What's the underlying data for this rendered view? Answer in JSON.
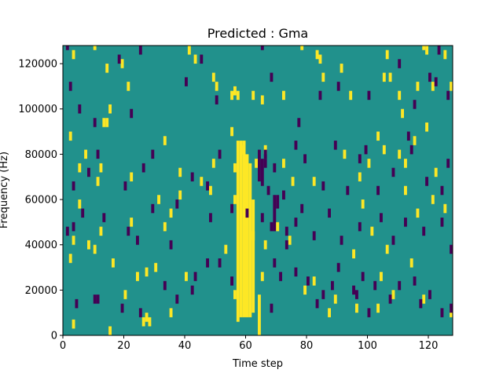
{
  "chart_data": {
    "type": "heatmap",
    "title": "Predicted : Gma",
    "xlabel": "Time step",
    "ylabel": "Frequency (Hz)",
    "xlim": [
      0,
      128
    ],
    "ylim": [
      0,
      128000
    ],
    "xticks": [
      0,
      20,
      40,
      60,
      80,
      100,
      120
    ],
    "yticks": [
      0,
      20000,
      40000,
      60000,
      80000,
      100000,
      120000
    ],
    "xtick_labels": [
      "0",
      "20",
      "40",
      "60",
      "80",
      "100",
      "120"
    ],
    "ytick_labels": [
      "0",
      "20000",
      "40000",
      "60000",
      "80000",
      "100000",
      "120000"
    ],
    "grid": false,
    "colormap": "viridis",
    "background_color": "#21918c",
    "high_color": "#fde725",
    "low_color": "#440154",
    "background_value": 0,
    "high_value": 1,
    "low_value": -1,
    "bin_width_x": 1,
    "bin_height_y": 1000,
    "dense_bands": [
      {
        "value": 1,
        "x": [
          57,
          58
        ],
        "y": [
          6000,
          86000
        ]
      },
      {
        "value": 1,
        "x": [
          58,
          59
        ],
        "y": [
          8000,
          86000
        ]
      },
      {
        "value": 1,
        "x": [
          59,
          60
        ],
        "y": [
          8000,
          86000
        ]
      },
      {
        "value": 1,
        "x": [
          60,
          61
        ],
        "y": [
          8000,
          80000
        ]
      },
      {
        "value": 1,
        "x": [
          61,
          62
        ],
        "y": [
          8000,
          76000
        ]
      },
      {
        "value": 1,
        "x": [
          62,
          63
        ],
        "y": [
          10000,
          60000
        ]
      },
      {
        "value": 1,
        "x": [
          64,
          65
        ],
        "y": [
          0,
          18000
        ]
      },
      {
        "value": -1,
        "x": [
          64,
          65
        ],
        "y": [
          68000,
          78000
        ]
      },
      {
        "value": -1,
        "x": [
          65,
          66
        ],
        "y": [
          66000,
          78000
        ]
      },
      {
        "value": -1,
        "x": [
          66,
          67
        ],
        "y": [
          74000,
          78000
        ]
      },
      {
        "value": -1,
        "x": [
          69,
          70
        ],
        "y": [
          46000,
          62000
        ]
      },
      {
        "value": -1,
        "x": [
          70,
          71
        ],
        "y": [
          56000,
          62000
        ]
      }
    ],
    "cells": [
      [
        3,
        3000,
        1
      ],
      [
        15,
        0,
        1
      ],
      [
        26,
        4000,
        1
      ],
      [
        27,
        6000,
        1
      ],
      [
        28,
        4000,
        1
      ],
      [
        35,
        8000,
        1
      ],
      [
        56,
        16000,
        1
      ],
      [
        65,
        24000,
        1
      ],
      [
        66,
        38000,
        1
      ],
      [
        87,
        8000,
        1
      ],
      [
        96,
        10000,
        1
      ],
      [
        103,
        10000,
        1
      ],
      [
        104,
        24000,
        1
      ],
      [
        118,
        14000,
        1
      ],
      [
        127,
        8000,
        1
      ],
      [
        2,
        32000,
        1
      ],
      [
        3,
        40000,
        1
      ],
      [
        5,
        56000,
        1
      ],
      [
        8,
        38000,
        1
      ],
      [
        10,
        36000,
        1
      ],
      [
        12,
        44000,
        1
      ],
      [
        16,
        30000,
        1
      ],
      [
        20,
        16000,
        1
      ],
      [
        22,
        48000,
        1
      ],
      [
        24,
        24000,
        1
      ],
      [
        27,
        26000,
        1
      ],
      [
        30,
        28000,
        1
      ],
      [
        31,
        58000,
        1
      ],
      [
        33,
        46000,
        1
      ],
      [
        35,
        52000,
        1
      ],
      [
        38,
        60000,
        1
      ],
      [
        40,
        24000,
        1
      ],
      [
        45,
        66000,
        1
      ],
      [
        48,
        62000,
        1
      ],
      [
        53,
        36000,
        1
      ],
      [
        56,
        58000,
        1
      ],
      [
        62,
        42000,
        1
      ],
      [
        70,
        46000,
        1
      ],
      [
        74,
        40000,
        1
      ],
      [
        79,
        18000,
        1
      ],
      [
        82,
        22000,
        1
      ],
      [
        89,
        14000,
        1
      ],
      [
        95,
        34000,
        1
      ],
      [
        98,
        56000,
        1
      ],
      [
        101,
        44000,
        1
      ],
      [
        106,
        36000,
        1
      ],
      [
        108,
        16000,
        1
      ],
      [
        112,
        62000,
        1
      ],
      [
        114,
        30000,
        1
      ],
      [
        116,
        52000,
        1
      ],
      [
        121,
        58000,
        1
      ],
      [
        125,
        54000,
        1
      ],
      [
        2,
        86000,
        1
      ],
      [
        5,
        72000,
        1
      ],
      [
        7,
        78000,
        1
      ],
      [
        11,
        66000,
        1
      ],
      [
        12,
        72000,
        1
      ],
      [
        13,
        92000,
        1
      ],
      [
        14,
        92000,
        1
      ],
      [
        15,
        98000,
        1
      ],
      [
        22,
        68000,
        1
      ],
      [
        33,
        84000,
        1
      ],
      [
        38,
        70000,
        1
      ],
      [
        49,
        74000,
        1
      ],
      [
        55,
        88000,
        1
      ],
      [
        56,
        72000,
        1
      ],
      [
        59,
        80000,
        1
      ],
      [
        63,
        74000,
        1
      ],
      [
        66,
        80000,
        1
      ],
      [
        72,
        74000,
        1
      ],
      [
        75,
        66000,
        1
      ],
      [
        82,
        66000,
        1
      ],
      [
        92,
        78000,
        1
      ],
      [
        97,
        68000,
        1
      ],
      [
        100,
        74000,
        1
      ],
      [
        103,
        86000,
        1
      ],
      [
        105,
        80000,
        1
      ],
      [
        110,
        78000,
        1
      ],
      [
        112,
        74000,
        1
      ],
      [
        115,
        84000,
        1
      ],
      [
        119,
        90000,
        1
      ],
      [
        122,
        70000,
        1
      ],
      [
        3,
        122000,
        1
      ],
      [
        10,
        126000,
        1
      ],
      [
        14,
        116000,
        1
      ],
      [
        19,
        118000,
        1
      ],
      [
        21,
        108000,
        1
      ],
      [
        41,
        124000,
        1
      ],
      [
        43,
        120000,
        1
      ],
      [
        49,
        112000,
        1
      ],
      [
        50,
        108000,
        1
      ],
      [
        55,
        104000,
        1
      ],
      [
        56,
        106000,
        1
      ],
      [
        57,
        104000,
        1
      ],
      [
        62,
        104000,
        1
      ],
      [
        65,
        102000,
        1
      ],
      [
        72,
        104000,
        1
      ],
      [
        78,
        126000,
        1
      ],
      [
        83,
        122000,
        1
      ],
      [
        84,
        120000,
        1
      ],
      [
        85,
        112000,
        1
      ],
      [
        91,
        116000,
        1
      ],
      [
        94,
        104000,
        1
      ],
      [
        105,
        112000,
        1
      ],
      [
        106,
        122000,
        1
      ],
      [
        107,
        112000,
        1
      ],
      [
        110,
        104000,
        1
      ],
      [
        111,
        96000,
        1
      ],
      [
        116,
        108000,
        1
      ],
      [
        118,
        126000,
        1
      ],
      [
        119,
        124000,
        1
      ],
      [
        121,
        108000,
        1
      ],
      [
        125,
        122000,
        1
      ],
      [
        127,
        108000,
        1
      ],
      [
        4,
        12000,
        -1
      ],
      [
        10,
        14000,
        -1
      ],
      [
        11,
        14000,
        -1
      ],
      [
        19,
        10000,
        -1
      ],
      [
        25,
        8000,
        -1
      ],
      [
        33,
        20000,
        -1
      ],
      [
        37,
        14000,
        -1
      ],
      [
        42,
        18000,
        -1
      ],
      [
        43,
        24000,
        -1
      ],
      [
        47,
        30000,
        -1
      ],
      [
        51,
        30000,
        -1
      ],
      [
        55,
        22000,
        -1
      ],
      [
        68,
        10000,
        -1
      ],
      [
        69,
        30000,
        -1
      ],
      [
        71,
        24000,
        -1
      ],
      [
        73,
        38000,
        -1
      ],
      [
        76,
        26000,
        -1
      ],
      [
        80,
        22000,
        -1
      ],
      [
        83,
        12000,
        -1
      ],
      [
        85,
        16000,
        -1
      ],
      [
        88,
        20000,
        -1
      ],
      [
        90,
        28000,
        -1
      ],
      [
        95,
        18000,
        -1
      ],
      [
        96,
        16000,
        -1
      ],
      [
        98,
        24000,
        -1
      ],
      [
        100,
        8000,
        -1
      ],
      [
        102,
        20000,
        -1
      ],
      [
        107,
        14000,
        -1
      ],
      [
        110,
        20000,
        -1
      ],
      [
        115,
        22000,
        -1
      ],
      [
        117,
        12000,
        -1
      ],
      [
        120,
        16000,
        -1
      ],
      [
        124,
        8000,
        -1
      ],
      [
        127,
        10000,
        -1
      ],
      [
        1,
        44000,
        -1
      ],
      [
        3,
        46000,
        -1
      ],
      [
        6,
        52000,
        -1
      ],
      [
        13,
        50000,
        -1
      ],
      [
        21,
        44000,
        -1
      ],
      [
        24,
        40000,
        -1
      ],
      [
        29,
        54000,
        -1
      ],
      [
        35,
        38000,
        -1
      ],
      [
        37,
        56000,
        -1
      ],
      [
        48,
        50000,
        -1
      ],
      [
        55,
        54000,
        -1
      ],
      [
        60,
        52000,
        -1
      ],
      [
        65,
        50000,
        -1
      ],
      [
        68,
        46000,
        -1
      ],
      [
        73,
        44000,
        -1
      ],
      [
        76,
        48000,
        -1
      ],
      [
        78,
        54000,
        -1
      ],
      [
        82,
        42000,
        -1
      ],
      [
        87,
        52000,
        -1
      ],
      [
        91,
        40000,
        -1
      ],
      [
        97,
        46000,
        -1
      ],
      [
        104,
        50000,
        -1
      ],
      [
        108,
        40000,
        -1
      ],
      [
        112,
        48000,
        -1
      ],
      [
        118,
        44000,
        -1
      ],
      [
        124,
        48000,
        -1
      ],
      [
        127,
        36000,
        -1
      ],
      [
        3,
        64000,
        -1
      ],
      [
        8,
        70000,
        -1
      ],
      [
        11,
        78000,
        -1
      ],
      [
        20,
        64000,
        -1
      ],
      [
        26,
        72000,
        -1
      ],
      [
        29,
        78000,
        -1
      ],
      [
        42,
        68000,
        -1
      ],
      [
        47,
        64000,
        -1
      ],
      [
        51,
        78000,
        -1
      ],
      [
        64,
        78000,
        -1
      ],
      [
        66,
        78000,
        -1
      ],
      [
        67,
        62000,
        -1
      ],
      [
        69,
        72000,
        -1
      ],
      [
        72,
        60000,
        -1
      ],
      [
        76,
        82000,
        -1
      ],
      [
        79,
        76000,
        -1
      ],
      [
        85,
        64000,
        -1
      ],
      [
        89,
        82000,
        -1
      ],
      [
        93,
        62000,
        -1
      ],
      [
        97,
        76000,
        -1
      ],
      [
        99,
        80000,
        -1
      ],
      [
        103,
        62000,
        -1
      ],
      [
        108,
        70000,
        -1
      ],
      [
        113,
        86000,
        -1
      ],
      [
        114,
        80000,
        -1
      ],
      [
        119,
        66000,
        -1
      ],
      [
        124,
        62000,
        -1
      ],
      [
        126,
        74000,
        -1
      ],
      [
        1,
        126000,
        -1
      ],
      [
        2,
        108000,
        -1
      ],
      [
        5,
        98000,
        -1
      ],
      [
        10,
        92000,
        -1
      ],
      [
        18,
        120000,
        -1
      ],
      [
        22,
        96000,
        -1
      ],
      [
        25,
        124000,
        -1
      ],
      [
        40,
        110000,
        -1
      ],
      [
        45,
        120000,
        -1
      ],
      [
        50,
        102000,
        -1
      ],
      [
        65,
        126000,
        -1
      ],
      [
        68,
        112000,
        -1
      ],
      [
        77,
        92000,
        -1
      ],
      [
        84,
        104000,
        -1
      ],
      [
        90,
        108000,
        -1
      ],
      [
        100,
        104000,
        -1
      ],
      [
        110,
        118000,
        -1
      ],
      [
        115,
        100000,
        -1
      ],
      [
        120,
        112000,
        -1
      ],
      [
        122,
        110000,
        -1
      ],
      [
        123,
        124000,
        -1
      ],
      [
        126,
        104000,
        -1
      ]
    ]
  }
}
